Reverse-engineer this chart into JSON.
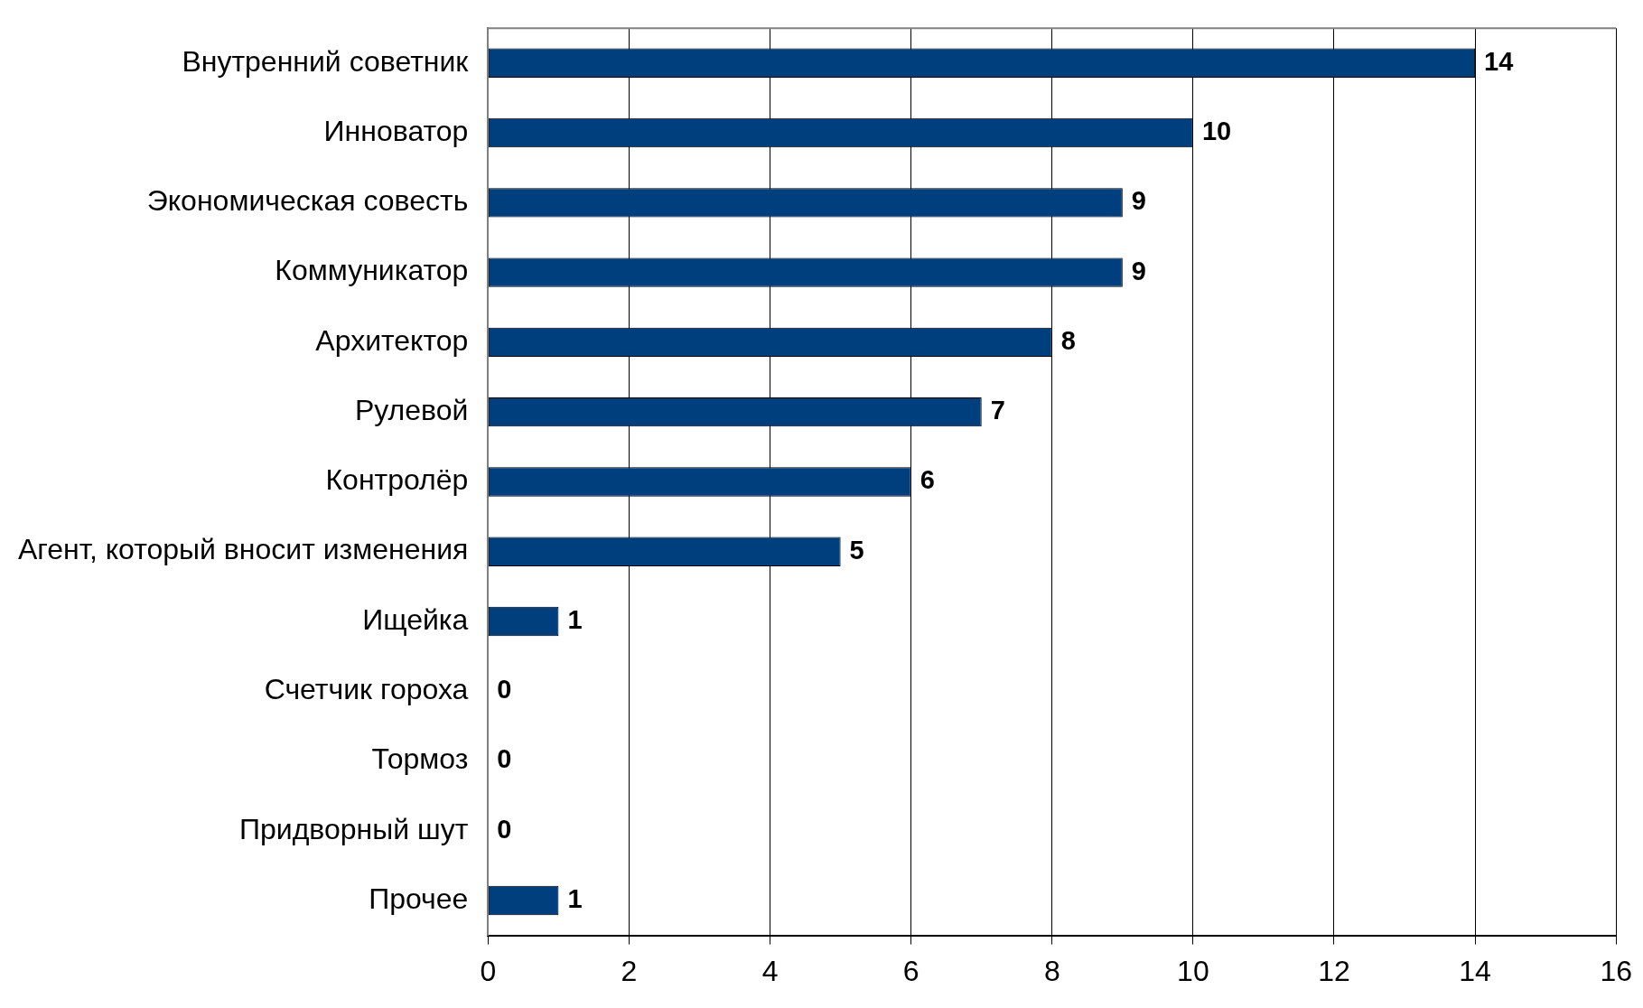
{
  "chart_data": {
    "type": "bar",
    "orientation": "horizontal",
    "categories": [
      "Внутренний советник",
      "Инноватор",
      "Экономическая совесть",
      "Коммуникатор",
      "Архитектор",
      "Рулевой",
      "Контролёр",
      "Агент, который вносит изменения",
      "Ищейка",
      "Счетчик гороха",
      "Тормоз",
      "Придворный шут",
      "Прочее"
    ],
    "values": [
      14,
      10,
      9,
      9,
      8,
      7,
      6,
      5,
      1,
      0,
      0,
      0,
      1
    ],
    "color": "#003f7d",
    "xlim": [
      0,
      16
    ],
    "xticks": [
      0,
      2,
      4,
      6,
      8,
      10,
      12,
      14,
      16
    ],
    "grid": "x",
    "data_labels": true,
    "legend": false
  }
}
